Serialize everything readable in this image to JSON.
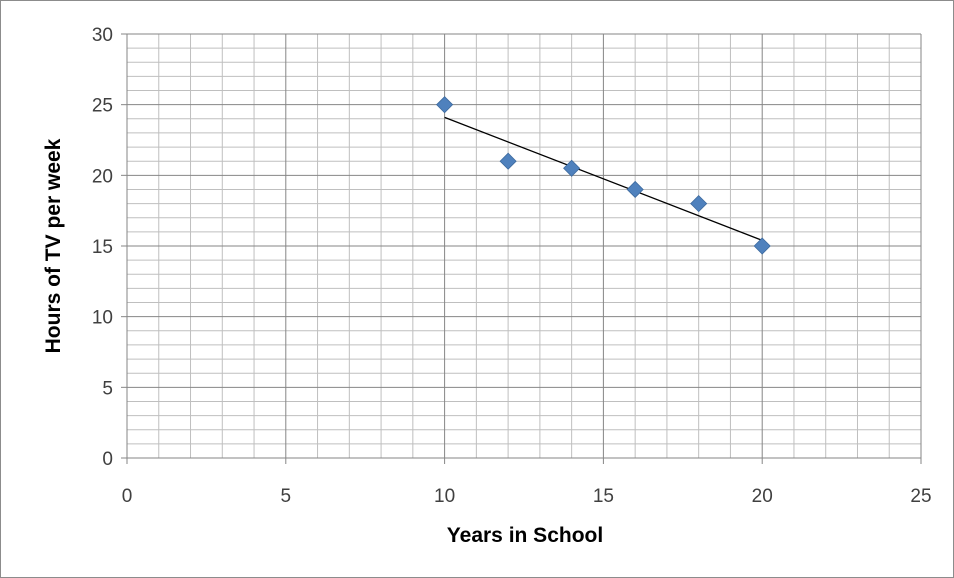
{
  "chart_data": {
    "type": "scatter",
    "title": "",
    "xlabel": "Years in School",
    "ylabel": "Hours of TV per week",
    "xlim": [
      0,
      25
    ],
    "ylim": [
      0,
      30
    ],
    "x_ticks": [
      "0",
      "5",
      "10",
      "15",
      "20",
      "25"
    ],
    "y_ticks": [
      "0",
      "5",
      "10",
      "15",
      "20",
      "25",
      "30"
    ],
    "grid": true,
    "legend": "none",
    "series": [
      {
        "marker": "diamond",
        "color": "#4f81bd",
        "points": [
          {
            "x": 10,
            "y": 25
          },
          {
            "x": 12,
            "y": 21
          },
          {
            "x": 14,
            "y": 20.5
          },
          {
            "x": 16,
            "y": 19
          },
          {
            "x": 18,
            "y": 18
          },
          {
            "x": 20,
            "y": 15
          }
        ]
      }
    ],
    "trendline": {
      "type": "linear",
      "color": "#000000",
      "x_range": [
        10,
        20
      ],
      "y_range": [
        24.1,
        15.4
      ]
    }
  }
}
